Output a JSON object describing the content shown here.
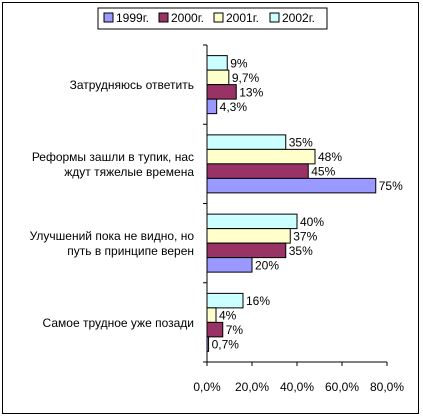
{
  "chart_data": {
    "type": "bar",
    "orientation": "horizontal",
    "categories": [
      "Затрудняюсь ответить",
      "Реформы зашли в тупик, нас ждут тяжелые времена",
      "Улучшений пока не видно, но путь в принципе верен",
      "Самое трудное уже позади"
    ],
    "category_lines": [
      [
        "Затрудняюсь ответить"
      ],
      [
        "Реформы зашли в тупик, нас",
        "ждут тяжелые времена"
      ],
      [
        "Улучшений пока не видно, но",
        "путь в принципе верен"
      ],
      [
        "Самое трудное уже позади"
      ]
    ],
    "series": [
      {
        "name": "1999г.",
        "color": "#9999FF",
        "values": [
          4.3,
          75,
          20,
          0.7
        ],
        "labels": [
          "4,3%",
          "75%",
          "20%",
          "0,7%"
        ]
      },
      {
        "name": "2000г.",
        "color": "#993366",
        "values": [
          13,
          45,
          35,
          7
        ],
        "labels": [
          "13%",
          "45%",
          "35%",
          "7%"
        ]
      },
      {
        "name": "2001г.",
        "color": "#FFFFCC",
        "values": [
          9.7,
          48,
          37,
          4
        ],
        "labels": [
          "9,7%",
          "48%",
          "37%",
          "4%"
        ]
      },
      {
        "name": "2002г.",
        "color": "#CCFFFF",
        "values": [
          9,
          35,
          40,
          16
        ],
        "labels": [
          "9%",
          "35%",
          "40%",
          "16%"
        ]
      }
    ],
    "xlim": [
      0,
      80
    ],
    "xticks": [
      "0,0%",
      "20,0%",
      "40,0%",
      "60,0%",
      "80,0%"
    ],
    "grid": false,
    "legend_position": "top",
    "title": "",
    "xlabel": "",
    "ylabel": ""
  }
}
